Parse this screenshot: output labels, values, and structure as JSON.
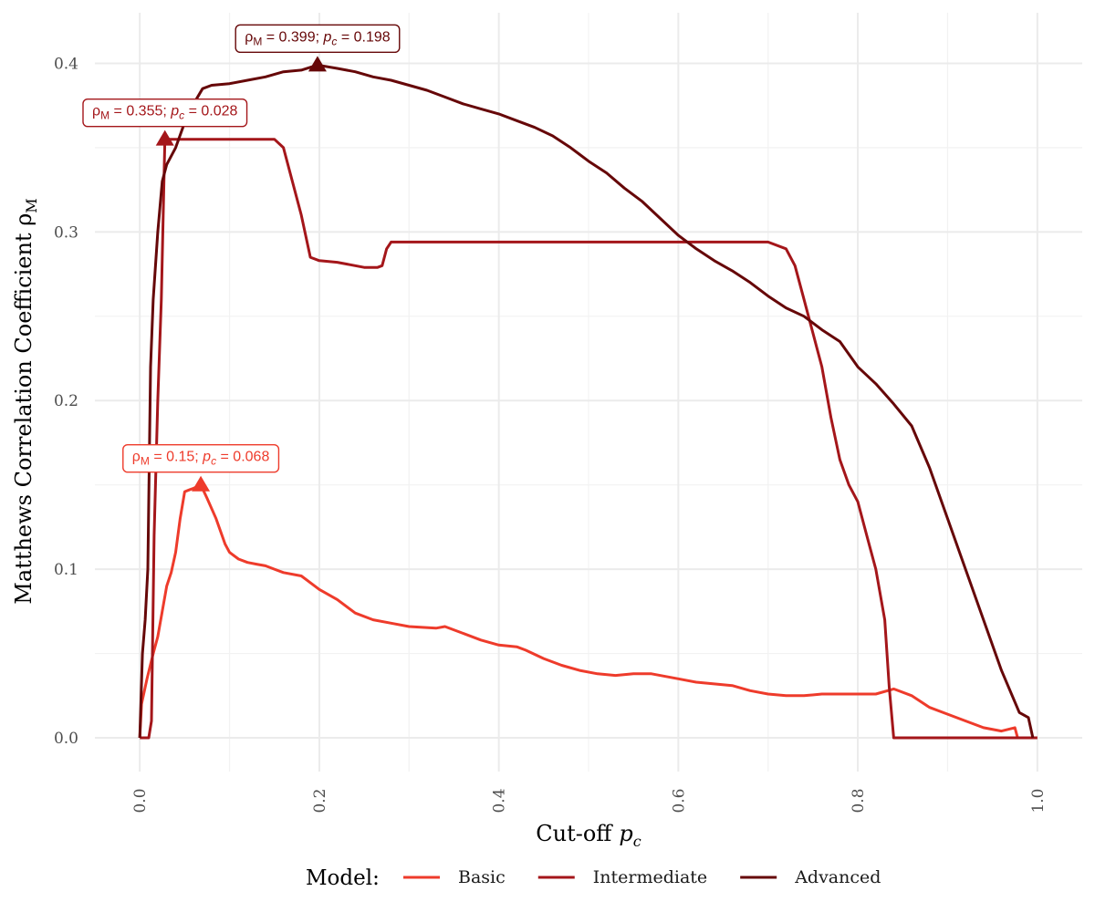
{
  "chart_data": {
    "type": "line",
    "xlabel": "Cut-off",
    "xlabel_var": "p",
    "xlabel_sub": "c",
    "ylabel": "Matthews Correlation Coefficient ρ",
    "ylabel_sub": "M",
    "xlim": [
      -0.05,
      1.05
    ],
    "ylim": [
      -0.02,
      0.43
    ],
    "x_ticks": [
      "0.0",
      "0.2",
      "0.4",
      "0.6",
      "0.8",
      "1.0"
    ],
    "y_ticks": [
      "0.0",
      "0.1",
      "0.2",
      "0.3",
      "0.4"
    ],
    "grid": true,
    "legend": {
      "title": "Model:",
      "position": "bottom"
    },
    "series": [
      {
        "name": "Basic",
        "color": "#ee3b2b",
        "points": [
          [
            0.0,
            0.0
          ],
          [
            0.002,
            0.02
          ],
          [
            0.008,
            0.035
          ],
          [
            0.015,
            0.05
          ],
          [
            0.02,
            0.06
          ],
          [
            0.025,
            0.075
          ],
          [
            0.03,
            0.09
          ],
          [
            0.035,
            0.098
          ],
          [
            0.04,
            0.11
          ],
          [
            0.045,
            0.13
          ],
          [
            0.05,
            0.146
          ],
          [
            0.055,
            0.147
          ],
          [
            0.06,
            0.148
          ],
          [
            0.068,
            0.15
          ],
          [
            0.075,
            0.142
          ],
          [
            0.085,
            0.13
          ],
          [
            0.095,
            0.115
          ],
          [
            0.1,
            0.11
          ],
          [
            0.11,
            0.106
          ],
          [
            0.12,
            0.104
          ],
          [
            0.13,
            0.103
          ],
          [
            0.14,
            0.102
          ],
          [
            0.15,
            0.1
          ],
          [
            0.16,
            0.098
          ],
          [
            0.18,
            0.096
          ],
          [
            0.19,
            0.092
          ],
          [
            0.2,
            0.088
          ],
          [
            0.22,
            0.082
          ],
          [
            0.24,
            0.074
          ],
          [
            0.26,
            0.07
          ],
          [
            0.28,
            0.068
          ],
          [
            0.3,
            0.066
          ],
          [
            0.33,
            0.065
          ],
          [
            0.34,
            0.066
          ],
          [
            0.36,
            0.062
          ],
          [
            0.38,
            0.058
          ],
          [
            0.4,
            0.055
          ],
          [
            0.42,
            0.054
          ],
          [
            0.43,
            0.052
          ],
          [
            0.45,
            0.047
          ],
          [
            0.47,
            0.043
          ],
          [
            0.49,
            0.04
          ],
          [
            0.51,
            0.038
          ],
          [
            0.53,
            0.037
          ],
          [
            0.55,
            0.038
          ],
          [
            0.57,
            0.038
          ],
          [
            0.6,
            0.035
          ],
          [
            0.62,
            0.033
          ],
          [
            0.64,
            0.032
          ],
          [
            0.66,
            0.031
          ],
          [
            0.68,
            0.028
          ],
          [
            0.7,
            0.026
          ],
          [
            0.72,
            0.025
          ],
          [
            0.74,
            0.025
          ],
          [
            0.76,
            0.026
          ],
          [
            0.78,
            0.026
          ],
          [
            0.8,
            0.026
          ],
          [
            0.82,
            0.026
          ],
          [
            0.84,
            0.029
          ],
          [
            0.86,
            0.025
          ],
          [
            0.88,
            0.018
          ],
          [
            0.9,
            0.014
          ],
          [
            0.92,
            0.01
          ],
          [
            0.94,
            0.006
          ],
          [
            0.96,
            0.004
          ],
          [
            0.975,
            0.006
          ],
          [
            0.978,
            0.0
          ],
          [
            1.0,
            0.0
          ]
        ]
      },
      {
        "name": "Intermediate",
        "color": "#a4161a",
        "points": [
          [
            0.0,
            0.0
          ],
          [
            0.01,
            0.0
          ],
          [
            0.013,
            0.01
          ],
          [
            0.016,
            0.12
          ],
          [
            0.02,
            0.2
          ],
          [
            0.024,
            0.26
          ],
          [
            0.028,
            0.355
          ],
          [
            0.05,
            0.355
          ],
          [
            0.1,
            0.355
          ],
          [
            0.15,
            0.355
          ],
          [
            0.16,
            0.35
          ],
          [
            0.17,
            0.33
          ],
          [
            0.18,
            0.31
          ],
          [
            0.19,
            0.285
          ],
          [
            0.2,
            0.283
          ],
          [
            0.22,
            0.282
          ],
          [
            0.25,
            0.279
          ],
          [
            0.265,
            0.279
          ],
          [
            0.27,
            0.28
          ],
          [
            0.275,
            0.29
          ],
          [
            0.28,
            0.294
          ],
          [
            0.3,
            0.294
          ],
          [
            0.5,
            0.294
          ],
          [
            0.7,
            0.294
          ],
          [
            0.72,
            0.29
          ],
          [
            0.73,
            0.28
          ],
          [
            0.74,
            0.26
          ],
          [
            0.75,
            0.24
          ],
          [
            0.76,
            0.22
          ],
          [
            0.77,
            0.19
          ],
          [
            0.78,
            0.165
          ],
          [
            0.79,
            0.15
          ],
          [
            0.8,
            0.14
          ],
          [
            0.81,
            0.12
          ],
          [
            0.82,
            0.1
          ],
          [
            0.83,
            0.07
          ],
          [
            0.835,
            0.03
          ],
          [
            0.84,
            0.0
          ],
          [
            1.0,
            0.0
          ]
        ]
      },
      {
        "name": "Advanced",
        "color": "#660708",
        "points": [
          [
            0.0,
            0.0
          ],
          [
            0.003,
            0.05
          ],
          [
            0.006,
            0.07
          ],
          [
            0.009,
            0.1
          ],
          [
            0.012,
            0.22
          ],
          [
            0.015,
            0.26
          ],
          [
            0.02,
            0.3
          ],
          [
            0.025,
            0.33
          ],
          [
            0.03,
            0.34
          ],
          [
            0.04,
            0.35
          ],
          [
            0.05,
            0.365
          ],
          [
            0.06,
            0.376
          ],
          [
            0.07,
            0.385
          ],
          [
            0.08,
            0.387
          ],
          [
            0.1,
            0.388
          ],
          [
            0.12,
            0.39
          ],
          [
            0.14,
            0.392
          ],
          [
            0.16,
            0.395
          ],
          [
            0.18,
            0.396
          ],
          [
            0.198,
            0.399
          ],
          [
            0.22,
            0.397
          ],
          [
            0.24,
            0.395
          ],
          [
            0.26,
            0.392
          ],
          [
            0.28,
            0.39
          ],
          [
            0.3,
            0.387
          ],
          [
            0.32,
            0.384
          ],
          [
            0.34,
            0.38
          ],
          [
            0.36,
            0.376
          ],
          [
            0.38,
            0.373
          ],
          [
            0.4,
            0.37
          ],
          [
            0.42,
            0.366
          ],
          [
            0.44,
            0.362
          ],
          [
            0.46,
            0.357
          ],
          [
            0.48,
            0.35
          ],
          [
            0.5,
            0.342
          ],
          [
            0.52,
            0.335
          ],
          [
            0.54,
            0.326
          ],
          [
            0.56,
            0.318
          ],
          [
            0.58,
            0.308
          ],
          [
            0.6,
            0.298
          ],
          [
            0.62,
            0.29
          ],
          [
            0.64,
            0.283
          ],
          [
            0.66,
            0.277
          ],
          [
            0.68,
            0.27
          ],
          [
            0.7,
            0.262
          ],
          [
            0.72,
            0.255
          ],
          [
            0.74,
            0.25
          ],
          [
            0.76,
            0.242
          ],
          [
            0.78,
            0.235
          ],
          [
            0.8,
            0.22
          ],
          [
            0.82,
            0.21
          ],
          [
            0.84,
            0.198
          ],
          [
            0.86,
            0.185
          ],
          [
            0.88,
            0.16
          ],
          [
            0.9,
            0.13
          ],
          [
            0.92,
            0.1
          ],
          [
            0.94,
            0.07
          ],
          [
            0.96,
            0.04
          ],
          [
            0.98,
            0.015
          ],
          [
            0.99,
            0.012
          ],
          [
            0.995,
            0.0
          ]
        ]
      }
    ],
    "annotations": [
      {
        "series": "Basic",
        "x": 0.068,
        "y": 0.15,
        "label_rho": "ρ",
        "label_rho_sub": "M",
        "label_value": " = 0.15;  ",
        "label_p": "p",
        "label_p_sub": "c",
        "label_pvalue": " = 0.068"
      },
      {
        "series": "Intermediate",
        "x": 0.028,
        "y": 0.355,
        "label_rho": "ρ",
        "label_rho_sub": "M",
        "label_value": " = 0.355;  ",
        "label_p": "p",
        "label_p_sub": "c",
        "label_pvalue": " = 0.028"
      },
      {
        "series": "Advanced",
        "x": 0.198,
        "y": 0.399,
        "label_rho": "ρ",
        "label_rho_sub": "M",
        "label_value": " = 0.399;  ",
        "label_p": "p",
        "label_p_sub": "c",
        "label_pvalue": " = 0.198"
      }
    ]
  }
}
